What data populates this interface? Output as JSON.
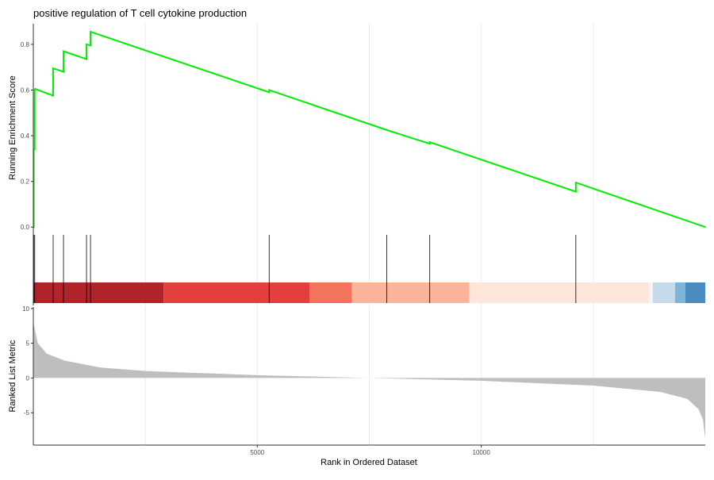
{
  "chart_data": {
    "type": "line",
    "title": "positive regulation of T cell cytokine production",
    "xlabel": "Rank in Ordered Dataset",
    "xlim": [
      0,
      15000
    ],
    "x_ticks": [
      5000,
      10000
    ],
    "x_tick_labels": [
      "5000",
      "10000"
    ],
    "grid_x": [
      2500,
      5000,
      7500,
      10000,
      12500
    ],
    "es_panel": {
      "ylabel": "Running Enrichment Score",
      "ylim": [
        -0.02,
        0.89
      ],
      "y_ticks": [
        0.0,
        0.2,
        0.4,
        0.6,
        0.8
      ],
      "y_tick_labels": [
        "0.0",
        "0.2",
        "0.4",
        "0.6",
        "0.8"
      ],
      "color": "#00ee00",
      "points": [
        [
          0,
          0
        ],
        [
          10,
          0
        ],
        [
          10,
          0.34
        ],
        [
          30,
          0.34
        ],
        [
          30,
          0.6
        ],
        [
          40,
          0.605
        ],
        [
          443,
          0.575
        ],
        [
          443,
          0.695
        ],
        [
          674,
          0.68
        ],
        [
          674,
          0.77
        ],
        [
          1188,
          0.735
        ],
        [
          1188,
          0.8
        ],
        [
          1277,
          0.795
        ],
        [
          1277,
          0.855
        ],
        [
          5266,
          0.59
        ],
        [
          5266,
          0.6
        ],
        [
          7890,
          0.425
        ],
        [
          8848,
          0.365
        ],
        [
          8848,
          0.372
        ],
        [
          12110,
          0.155
        ],
        [
          12110,
          0.195
        ],
        [
          15000,
          0.0
        ]
      ]
    },
    "hits": [
      10,
      30,
      443,
      674,
      1188,
      1277,
      5266,
      7890,
      8848,
      12110
    ],
    "color_band": [
      {
        "from": 0,
        "to": 2908,
        "color": "#b2242b"
      },
      {
        "from": 2908,
        "to": 6170,
        "color": "#e3403d"
      },
      {
        "from": 6170,
        "to": 7110,
        "color": "#f4735c"
      },
      {
        "from": 7110,
        "to": 9734,
        "color": "#fbb49a"
      },
      {
        "from": 9734,
        "to": 13741,
        "color": "#fde5da"
      },
      {
        "from": 13741,
        "to": 13830,
        "color": "#f2f4f7"
      },
      {
        "from": 13830,
        "to": 14326,
        "color": "#c6dbea"
      },
      {
        "from": 14326,
        "to": 14557,
        "color": "#7db4da"
      },
      {
        "from": 14557,
        "to": 15000,
        "color": "#4a8cc2"
      }
    ],
    "metric_panel": {
      "ylabel": "Ranked List Metric",
      "ylim": [
        -9.65,
        10.2
      ],
      "y_ticks": [
        10,
        5,
        0,
        -5
      ],
      "y_tick_labels": [
        "10",
        "5",
        "0",
        "-5"
      ],
      "color": "#bebebe",
      "points": [
        [
          0,
          8
        ],
        [
          50,
          6.5
        ],
        [
          100,
          5
        ],
        [
          300,
          3.5
        ],
        [
          700,
          2.5
        ],
        [
          1500,
          1.5
        ],
        [
          2500,
          1.0
        ],
        [
          5000,
          0.4
        ],
        [
          7500,
          0
        ],
        [
          10000,
          -0.4
        ],
        [
          12500,
          -1.1
        ],
        [
          14000,
          -2
        ],
        [
          14600,
          -3
        ],
        [
          14850,
          -4.5
        ],
        [
          14950,
          -6
        ],
        [
          15000,
          -8.8
        ]
      ]
    }
  }
}
